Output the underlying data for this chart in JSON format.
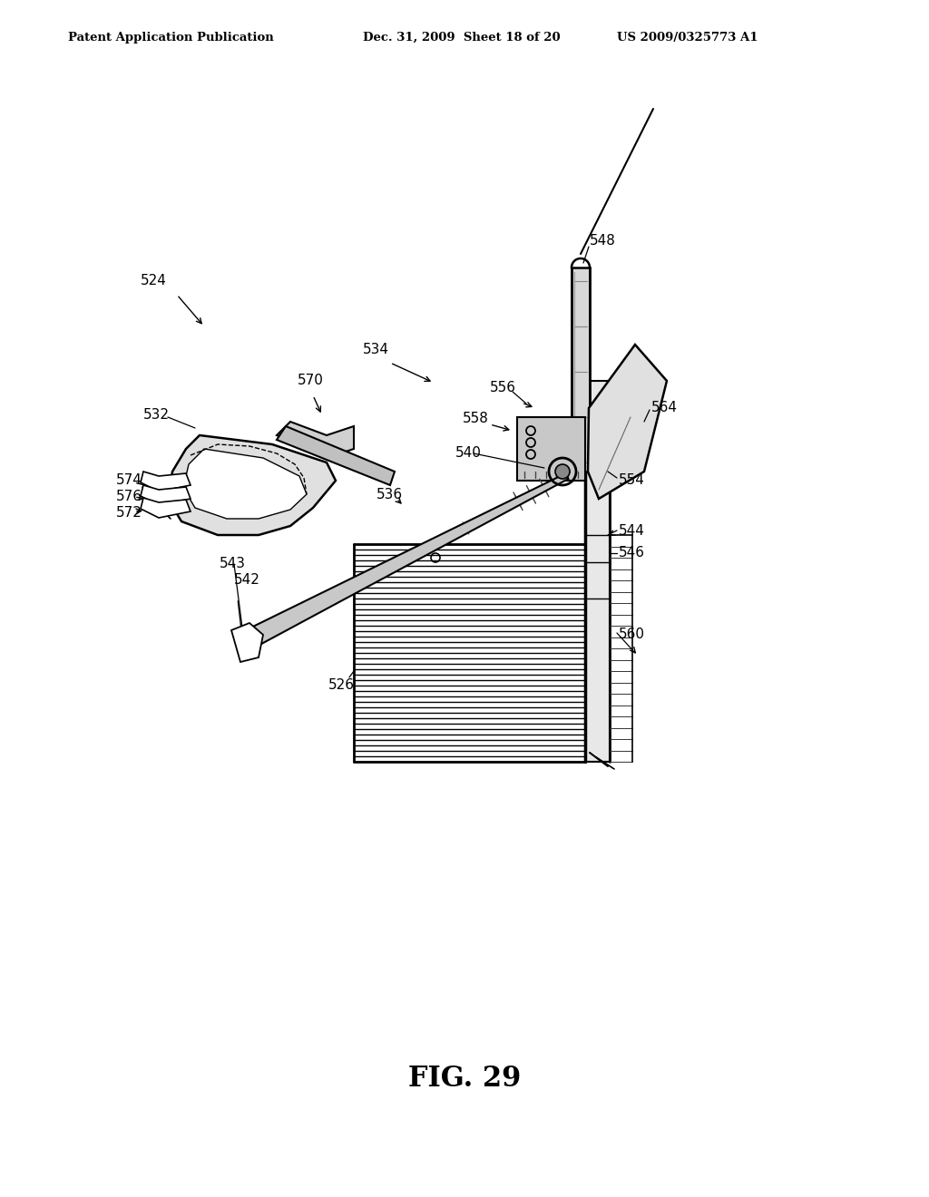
{
  "bg_color": "#ffffff",
  "header_left": "Patent Application Publication",
  "header_mid": "Dec. 31, 2009  Sheet 18 of 20",
  "header_right": "US 2009/0325773 A1",
  "figure_label": "FIG. 29"
}
